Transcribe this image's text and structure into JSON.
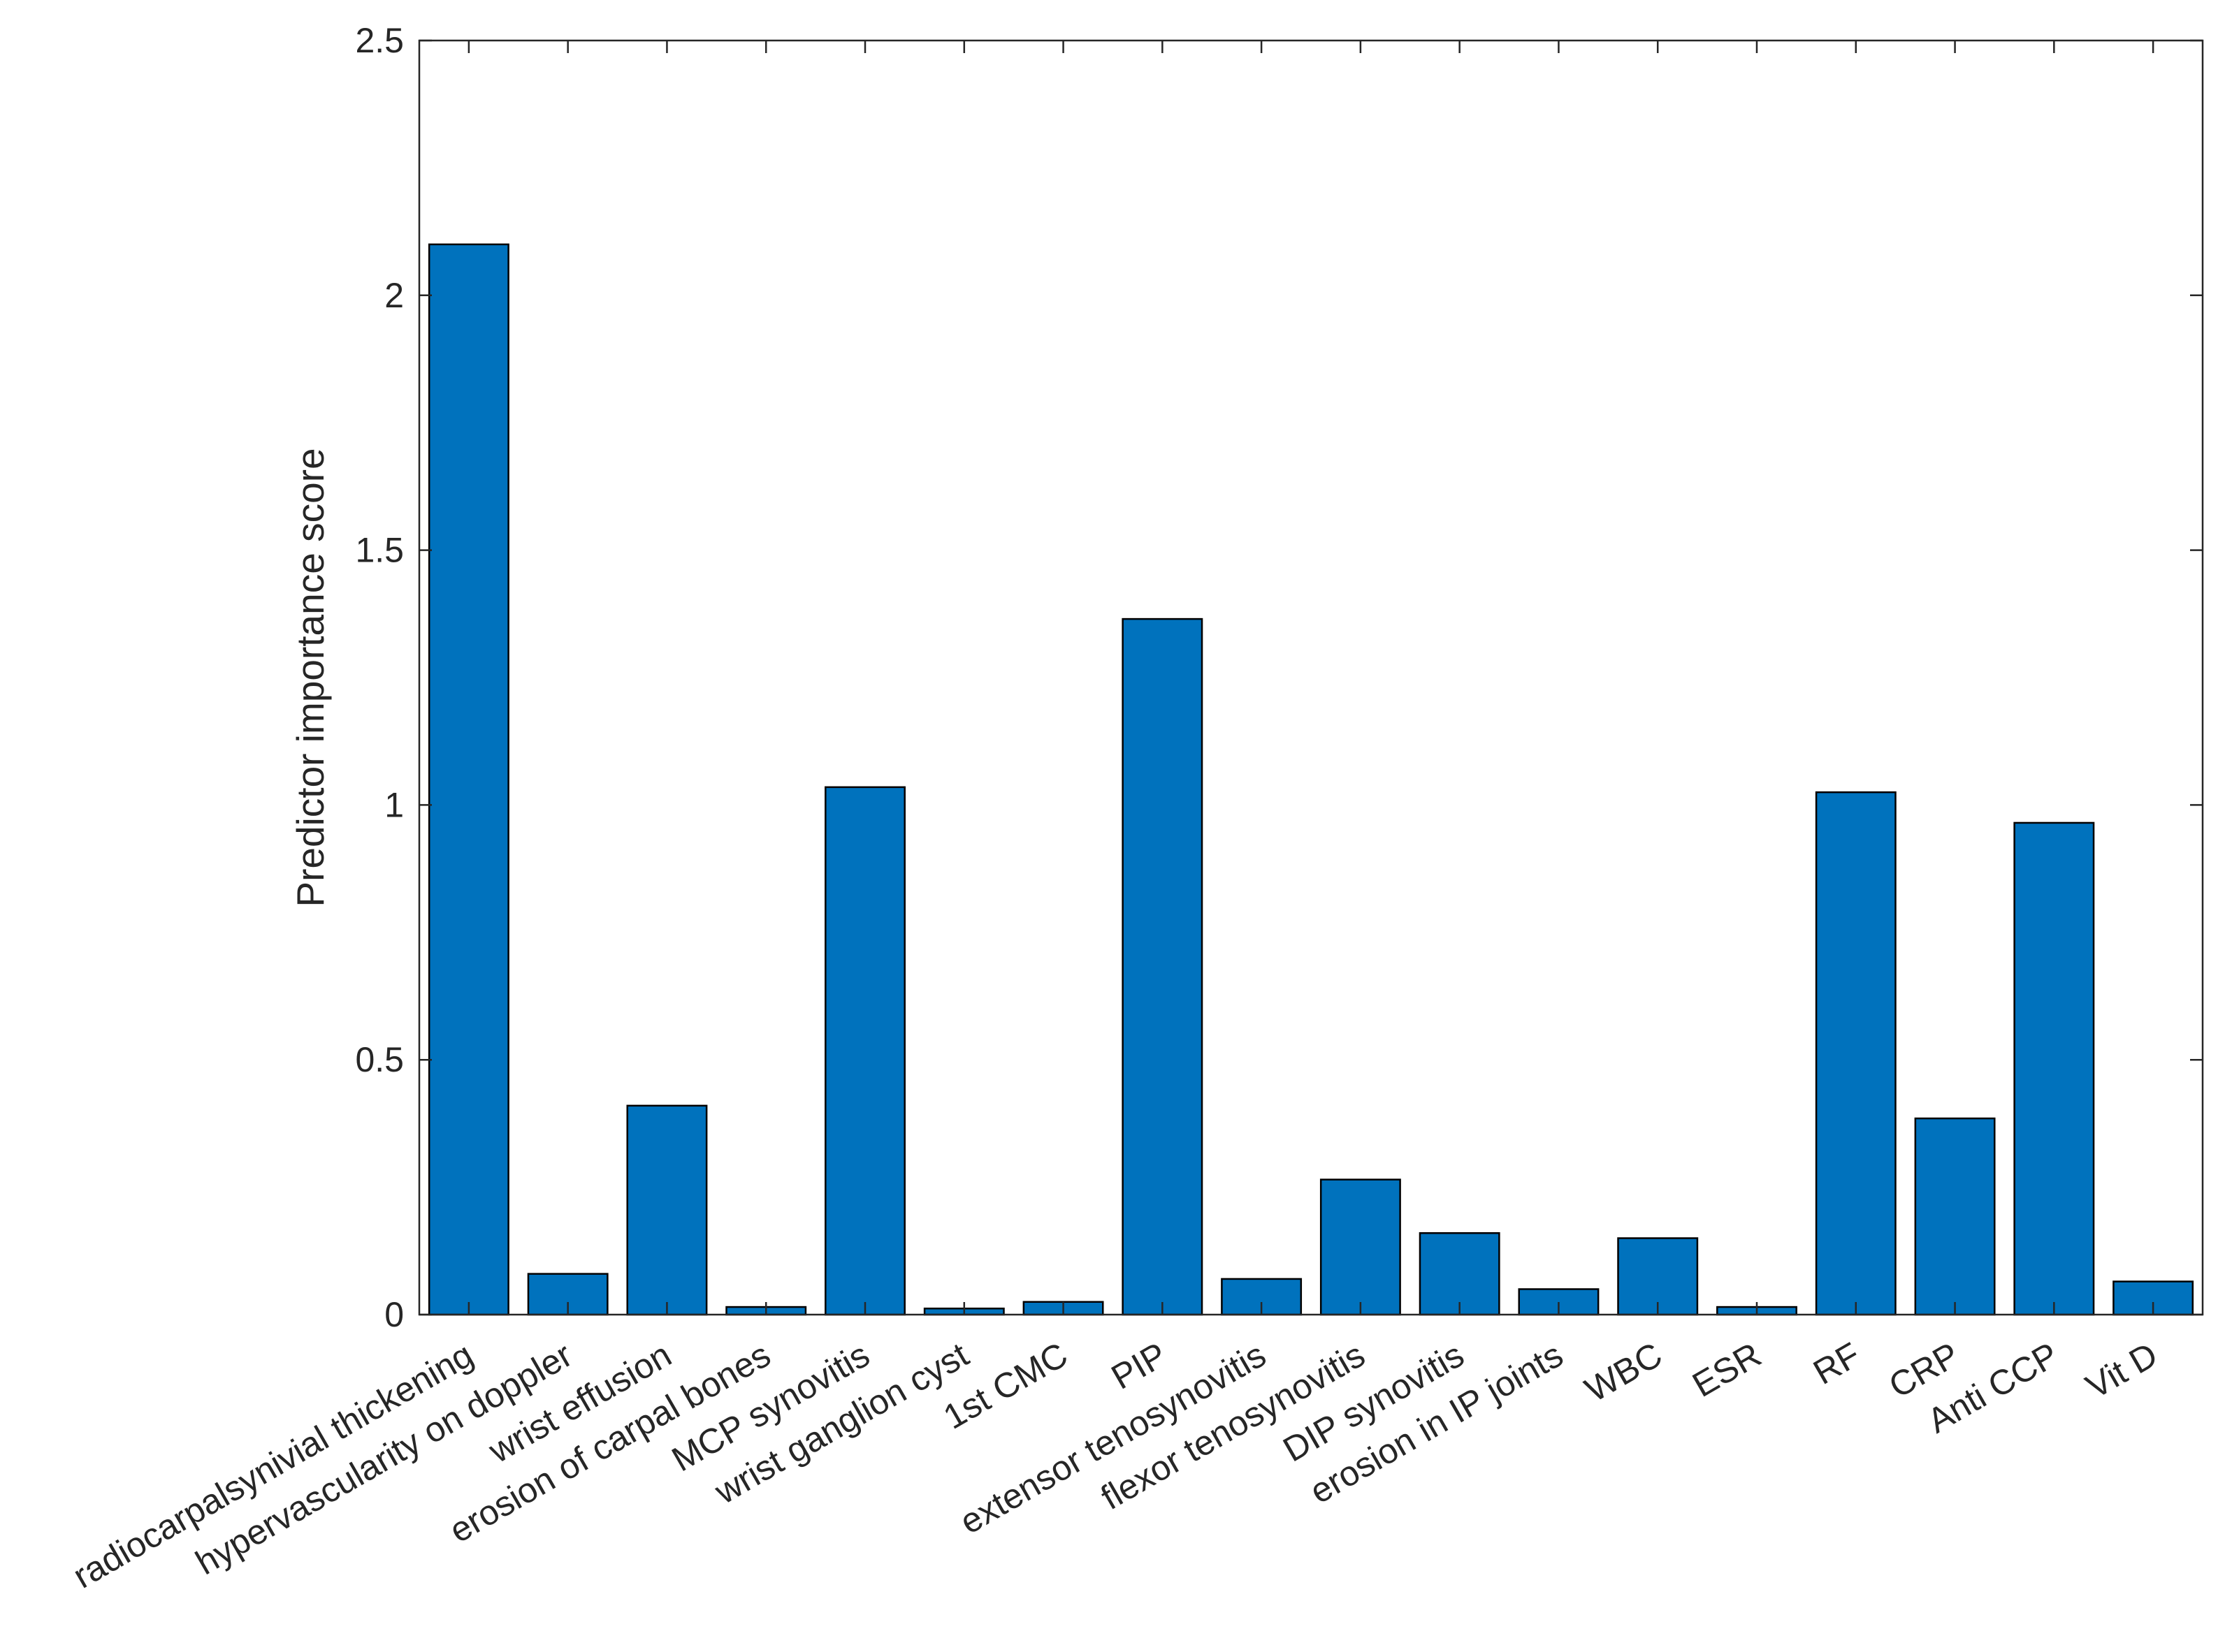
{
  "colors": {
    "bar_fill": "#0072BD",
    "bar_stroke": "#000000",
    "axis": "#262626",
    "background": "#ffffff"
  },
  "chart_data": {
    "type": "bar",
    "title": "",
    "xlabel": "",
    "ylabel": "Predictor importance score",
    "ylim": [
      0,
      2.5
    ],
    "yticks": [
      0,
      0.5,
      1,
      1.5,
      2,
      2.5
    ],
    "ytick_labels": [
      "0",
      "0.5",
      "1",
      "1.5",
      "2",
      "2.5"
    ],
    "grid": false,
    "box": true,
    "categories": [
      "radiocarpalsynivial thickening",
      "hypervascularity on doppler",
      "wrist effusion",
      "erosion of carpal bones",
      "MCP synovitis",
      "wrist ganglion cyst",
      "1st CMC",
      "PIP",
      "extensor tenosynovitis",
      "flexor tenosynovitis",
      "DIP synovitis",
      "erosion in IP joints",
      "WBC",
      "ESR",
      "RF",
      "CRP",
      "Anti CCP",
      "Vit D"
    ],
    "values": [
      2.1,
      0.08,
      0.41,
      0.015,
      1.035,
      0.012,
      0.025,
      1.365,
      0.07,
      0.265,
      0.16,
      0.05,
      0.15,
      0.015,
      1.025,
      0.385,
      0.965,
      0.065
    ]
  }
}
